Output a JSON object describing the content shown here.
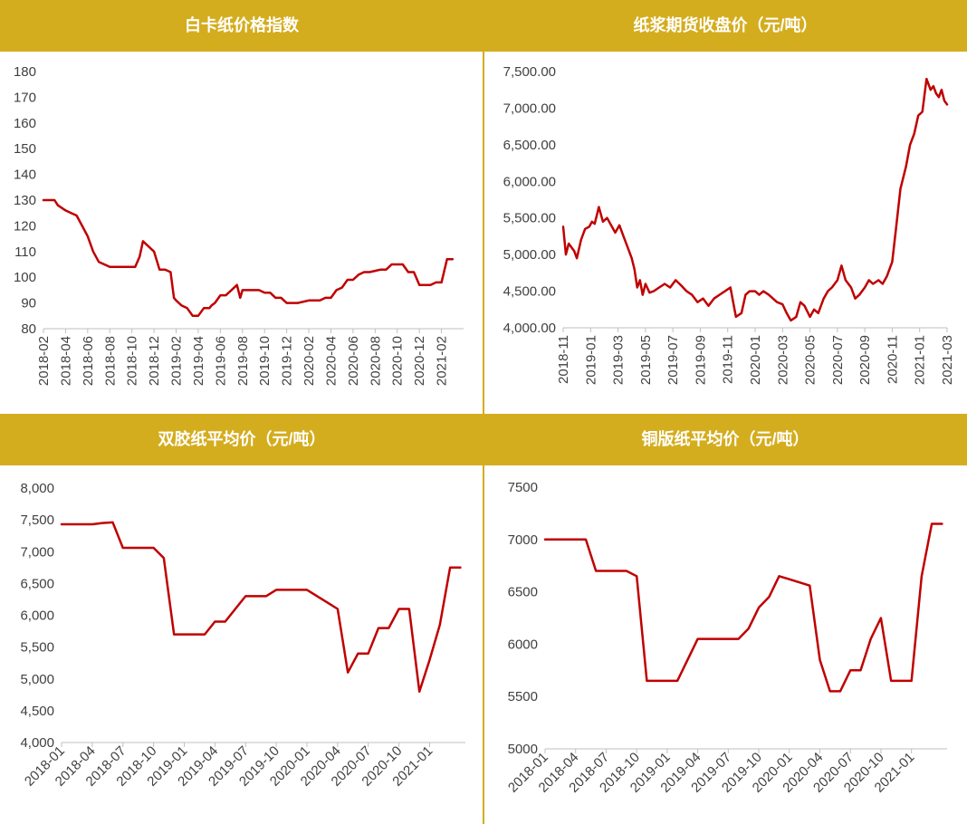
{
  "chart_data": [
    {
      "type": "line",
      "title": "白卡纸价格指数",
      "color": "#c00000",
      "ylim": [
        80,
        180
      ],
      "yticks": [
        80,
        90,
        100,
        110,
        120,
        130,
        140,
        150,
        160,
        170,
        180
      ],
      "ytick_labels": [
        "80",
        "90",
        "100",
        "110",
        "120",
        "130",
        "140",
        "150",
        "160",
        "170",
        "180"
      ],
      "xlim": [
        0,
        38
      ],
      "xticks": [
        0,
        2,
        4,
        6,
        8,
        10,
        12,
        14,
        16,
        18,
        20,
        22,
        24,
        26,
        28,
        30,
        32,
        34,
        36
      ],
      "xtick_labels": [
        "2018-02",
        "2018-04",
        "2018-06",
        "2018-08",
        "2018-10",
        "2018-12",
        "2019-02",
        "2019-04",
        "2019-06",
        "2019-08",
        "2019-10",
        "2019-12",
        "2020-02",
        "2020-04",
        "2020-06",
        "2020-08",
        "2020-10",
        "2020-12",
        "2021-02"
      ],
      "series": [
        {
          "x": [
            0,
            1,
            1.3,
            2,
            2.5,
            3,
            3.5,
            4,
            4.5,
            5,
            6,
            7,
            7.5,
            8,
            8.3,
            8.7,
            9,
            10,
            10.5,
            11,
            11.5,
            11.8,
            12,
            12.5,
            13,
            13.5,
            14,
            14.5,
            15,
            15.2,
            15.5,
            16,
            16.5,
            17,
            17.5,
            17.8,
            18,
            18.5,
            19,
            19.5,
            20,
            20.5,
            21,
            21.5,
            22,
            23,
            24,
            25,
            25.5,
            26,
            26.5,
            27,
            27.5,
            28,
            28.5,
            29,
            29.5,
            30,
            30.5,
            31,
            31.5,
            32,
            32.5,
            33,
            33.5,
            34,
            34.5,
            35,
            35.5,
            36,
            36.5,
            37
          ],
          "y": [
            130,
            130,
            128,
            126,
            125,
            124,
            120,
            116,
            110,
            106,
            104,
            104,
            104,
            104,
            104,
            108,
            114,
            110,
            103,
            103,
            102,
            92,
            91,
            89,
            88,
            85,
            85,
            88,
            88,
            89,
            90,
            93,
            93,
            95,
            97,
            92,
            95,
            95,
            95,
            95,
            94,
            94,
            92,
            92,
            90,
            90,
            91,
            91,
            92,
            92,
            95,
            96,
            99,
            99,
            101,
            102,
            102,
            102.5,
            103,
            103,
            105,
            105,
            105,
            102,
            102,
            97,
            97,
            97,
            98,
            98,
            107,
            107
          ]
        }
      ]
    },
    {
      "type": "line",
      "title": "纸浆期货收盘价（元/吨）",
      "color": "#c00000",
      "ylim": [
        4000,
        7500
      ],
      "yticks": [
        4000,
        4500,
        5000,
        5500,
        6000,
        6500,
        7000,
        7500
      ],
      "ytick_labels": [
        "4,000.00",
        "4,500.00",
        "5,000.00",
        "5,500.00",
        "6,000.00",
        "6,500.00",
        "7,000.00",
        "7,500.00"
      ],
      "xlim": [
        0,
        28
      ],
      "xticks": [
        0,
        2,
        4,
        6,
        8,
        10,
        12,
        14,
        16,
        18,
        20,
        22,
        24,
        26,
        28
      ],
      "xtick_labels": [
        "2018-11",
        "2019-01",
        "2019-03",
        "2019-05",
        "2019-07",
        "2019-09",
        "2019-11",
        "2020-01",
        "2020-03",
        "2020-05",
        "2020-07",
        "2020-09",
        "2020-11",
        "2021-01",
        "2021-03"
      ],
      "series": [
        {
          "x": [
            0,
            0.2,
            0.4,
            0.6,
            0.8,
            1.0,
            1.3,
            1.6,
            1.9,
            2.1,
            2.3,
            2.6,
            2.9,
            3.2,
            3.5,
            3.8,
            4.1,
            4.4,
            4.7,
            5.0,
            5.2,
            5.4,
            5.6,
            5.8,
            6.0,
            6.3,
            6.6,
            7.0,
            7.4,
            7.8,
            8.2,
            8.6,
            9.0,
            9.4,
            9.8,
            10.2,
            10.6,
            11.0,
            11.4,
            11.8,
            12.2,
            12.6,
            13.0,
            13.3,
            13.6,
            14.0,
            14.3,
            14.6,
            15.0,
            15.3,
            15.6,
            16.0,
            16.3,
            16.6,
            17.0,
            17.3,
            17.6,
            18.0,
            18.3,
            18.6,
            19.0,
            19.3,
            19.6,
            20.0,
            20.3,
            20.6,
            21.0,
            21.3,
            21.6,
            22.0,
            22.3,
            22.6,
            23.0,
            23.3,
            23.6,
            24.0,
            24.3,
            24.6,
            25.0,
            25.3,
            25.6,
            25.9,
            26.2,
            26.5,
            26.8,
            27.0,
            27.2,
            27.4,
            27.6,
            27.8,
            28.0
          ],
          "y": [
            5380,
            5000,
            5150,
            5100,
            5050,
            4950,
            5200,
            5350,
            5380,
            5450,
            5420,
            5650,
            5450,
            5500,
            5400,
            5300,
            5400,
            5250,
            5100,
            4950,
            4800,
            4550,
            4650,
            4450,
            4600,
            4480,
            4500,
            4550,
            4600,
            4550,
            4650,
            4580,
            4500,
            4450,
            4350,
            4400,
            4300,
            4400,
            4450,
            4500,
            4550,
            4150,
            4200,
            4450,
            4500,
            4500,
            4450,
            4500,
            4450,
            4400,
            4350,
            4320,
            4200,
            4100,
            4150,
            4350,
            4300,
            4150,
            4250,
            4200,
            4400,
            4500,
            4550,
            4650,
            4850,
            4650,
            4550,
            4400,
            4450,
            4550,
            4650,
            4600,
            4650,
            4600,
            4700,
            4900,
            5400,
            5900,
            6200,
            6500,
            6650,
            6900,
            6950,
            7400,
            7250,
            7300,
            7200,
            7150,
            7250,
            7100,
            7050
          ]
        }
      ]
    },
    {
      "type": "line",
      "title": "双胶纸平均价（元/吨）",
      "color": "#c00000",
      "ylim": [
        4000,
        8000
      ],
      "yticks": [
        4000,
        4500,
        5000,
        5500,
        6000,
        6500,
        7000,
        7500,
        8000
      ],
      "ytick_labels": [
        "4,000",
        "4,500",
        "5,000",
        "5,500",
        "6,000",
        "6,500",
        "7,000",
        "7,500",
        "8,000"
      ],
      "xlim": [
        0,
        39.5
      ],
      "xticks": [
        0,
        3,
        6,
        9,
        12,
        15,
        18,
        21,
        24,
        27,
        30,
        33,
        36
      ],
      "xtick_labels": [
        "2018-01",
        "2018-04",
        "2018-07",
        "2018-10",
        "2019-01",
        "2019-04",
        "2019-07",
        "2019-10",
        "2020-01",
        "2020-04",
        "2020-07",
        "2020-10",
        "2021-01"
      ],
      "series": [
        {
          "x": [
            0,
            1,
            2,
            3,
            4,
            5,
            6,
            7,
            8,
            9,
            10,
            11,
            12,
            13,
            14,
            15,
            16,
            17,
            18,
            19,
            20,
            21,
            22,
            23,
            24,
            25,
            26,
            27,
            28,
            29,
            30,
            31,
            32,
            33,
            34,
            35,
            36,
            37,
            38,
            39
          ],
          "y": [
            7430,
            7430,
            7430,
            7430,
            7450,
            7460,
            7060,
            7060,
            7060,
            7060,
            6900,
            5700,
            5700,
            5700,
            5700,
            5900,
            5900,
            6100,
            6300,
            6300,
            6300,
            6400,
            6400,
            6400,
            6400,
            6300,
            6200,
            6100,
            5100,
            5400,
            5400,
            5800,
            5800,
            6100,
            6100,
            4800,
            5300,
            5850,
            6750,
            6750
          ]
        }
      ]
    },
    {
      "type": "line",
      "title": "铜版纸平均价（元/吨）",
      "color": "#c00000",
      "ylim": [
        5000,
        7500
      ],
      "yticks": [
        5000,
        5500,
        6000,
        6500,
        7000,
        7500
      ],
      "ytick_labels": [
        "5000",
        "5500",
        "6000",
        "6500",
        "7000",
        "7500"
      ],
      "xlim": [
        0,
        39.5
      ],
      "xticks": [
        0,
        3,
        6,
        9,
        12,
        15,
        18,
        21,
        24,
        27,
        30,
        33,
        36
      ],
      "xtick_labels": [
        "2018-01",
        "2018-04",
        "2018-07",
        "2018-10",
        "2019-01",
        "2019-04",
        "2019-07",
        "2019-10",
        "2020-01",
        "2020-04",
        "2020-07",
        "2020-10",
        "2021-01"
      ],
      "series": [
        {
          "x": [
            0,
            1,
            2,
            3,
            4,
            5,
            6,
            7,
            8,
            9,
            10,
            11,
            12,
            13,
            14,
            15,
            16,
            17,
            18,
            19,
            20,
            21,
            22,
            23,
            24,
            25,
            26,
            27,
            28,
            29,
            30,
            31,
            32,
            33,
            34,
            35,
            36,
            37,
            38,
            39
          ],
          "y": [
            7000,
            7000,
            7000,
            7000,
            7000,
            6700,
            6700,
            6700,
            6700,
            6650,
            5650,
            5650,
            5650,
            5650,
            5850,
            6050,
            6050,
            6050,
            6050,
            6050,
            6150,
            6350,
            6450,
            6650,
            6620,
            6590,
            6560,
            5850,
            5550,
            5550,
            5750,
            5750,
            6050,
            6250,
            5650,
            5650,
            5650,
            6650,
            7150,
            7150
          ]
        }
      ]
    }
  ]
}
